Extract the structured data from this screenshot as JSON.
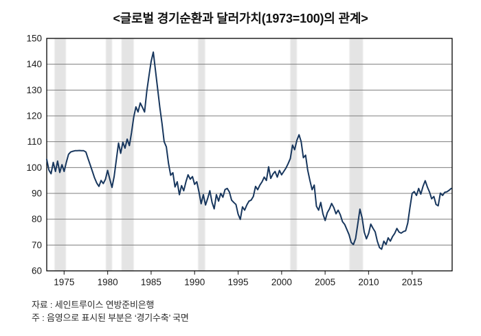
{
  "title": "<글로벌 경기순환과 달러가치(1973=100)의 관계>",
  "notes": {
    "source": "자료 : 세인트루이스 연방준비은행",
    "note": "주 : 음영으로 표시된 부분은 ‘경기수축’ 국면"
  },
  "chart_data": {
    "type": "line",
    "title": "글로벌 경기순환과 달러가치(1973=100)의 관계",
    "xlabel": "",
    "ylabel": "",
    "xlim": [
      1973.0,
      2019.6
    ],
    "ylim": [
      60,
      150
    ],
    "grid": "horizontal",
    "legend": "none",
    "y_ticks": [
      60,
      70,
      80,
      90,
      100,
      110,
      120,
      130,
      140,
      150
    ],
    "x_ticks": [
      1975,
      1980,
      1985,
      1990,
      1995,
      2000,
      2005,
      2010,
      2015
    ],
    "recession_bands": [
      [
        1973.9,
        1975.2
      ],
      [
        1979.8,
        1980.5
      ],
      [
        1981.6,
        1983.0
      ],
      [
        1990.4,
        1991.2
      ],
      [
        2001.0,
        2001.75
      ],
      [
        2007.8,
        2009.35
      ]
    ],
    "series": [
      {
        "name": "달러가치(1973=100)",
        "x_start": 1973.0,
        "x_step": 0.25,
        "values": [
          103.2,
          99.0,
          97.6,
          102.0,
          98.5,
          102.5,
          98.1,
          101.1,
          98.5,
          102.0,
          105.1,
          106.0,
          106.3,
          106.5,
          106.5,
          106.6,
          106.5,
          106.5,
          106.0,
          103.5,
          101.0,
          98.5,
          96.0,
          94.0,
          92.7,
          95.0,
          93.8,
          95.5,
          98.9,
          95.5,
          92.3,
          96.5,
          103.0,
          109.5,
          105.5,
          109.8,
          107.5,
          111.0,
          108.5,
          113.5,
          119.5,
          123.5,
          121.5,
          125.0,
          123.3,
          121.5,
          129.5,
          135.5,
          141.0,
          144.7,
          137.5,
          130.5,
          123.3,
          117.0,
          110.0,
          108.0,
          101.5,
          97.0,
          98.0,
          92.5,
          94.5,
          89.5,
          93.0,
          91.0,
          94.5,
          97.2,
          95.5,
          96.5,
          93.5,
          94.5,
          90.5,
          86.0,
          89.5,
          85.5,
          88.0,
          91.0,
          86.5,
          84.0,
          89.5,
          87.0,
          90.0,
          88.5,
          91.5,
          91.9,
          90.5,
          87.4,
          86.5,
          85.7,
          82.0,
          79.9,
          84.8,
          83.5,
          85.5,
          87.0,
          87.4,
          88.8,
          92.7,
          91.4,
          93.2,
          94.5,
          96.3,
          95.0,
          100.3,
          95.8,
          97.5,
          98.5,
          96.3,
          98.9,
          97.2,
          98.5,
          99.8,
          101.5,
          103.5,
          108.7,
          106.9,
          110.5,
          112.7,
          110.0,
          103.8,
          104.8,
          99.0,
          95.0,
          91.4,
          93.2,
          85.0,
          83.5,
          86.5,
          82.0,
          79.5,
          82.5,
          84.0,
          86.1,
          84.5,
          82.1,
          83.5,
          81.7,
          79.0,
          78.0,
          76.0,
          74.0,
          71.0,
          70.2,
          72.5,
          78.0,
          83.9,
          80.5,
          75.0,
          72.4,
          74.5,
          78.1,
          76.5,
          75.1,
          71.5,
          69.0,
          68.4,
          71.5,
          70.2,
          72.8,
          71.5,
          73.3,
          74.5,
          76.4,
          75.0,
          74.6,
          75.2,
          75.5,
          78.5,
          84.5,
          90.0,
          90.7,
          89.2,
          91.9,
          89.7,
          92.7,
          94.9,
          92.5,
          90.5,
          87.9,
          88.8,
          85.7,
          85.2,
          90.1,
          89.2,
          90.4,
          90.6,
          91.2,
          91.9
        ]
      }
    ],
    "colors": {
      "line": "#17365d",
      "band": "#e4e4e4",
      "grid": "#7d7d7d",
      "frame": "#000000",
      "tick_label": "#1a1a1a"
    }
  }
}
